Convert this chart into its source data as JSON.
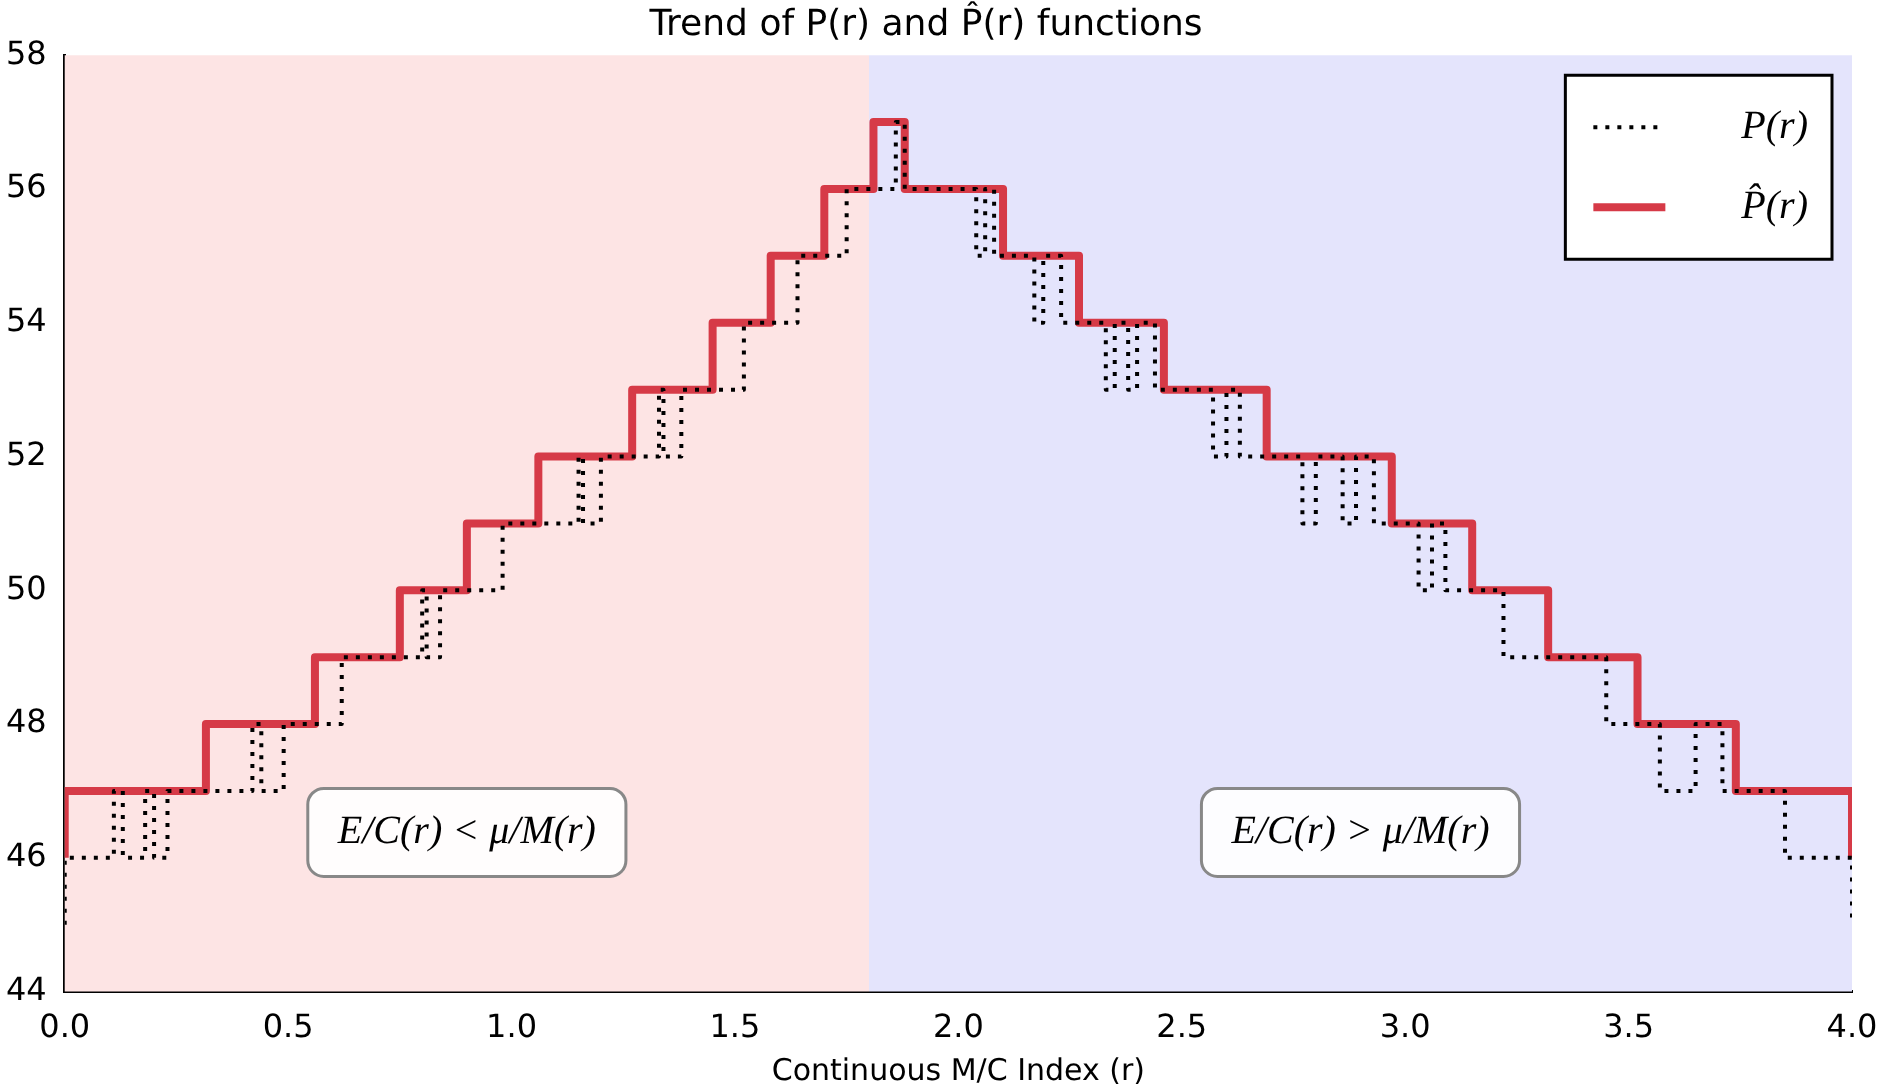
{
  "chart_data": {
    "type": "step",
    "title": "Trend of P(r) and P̂(r) functions",
    "xlabel": "Continuous M/C Index (r)",
    "xlim": [
      0,
      4
    ],
    "xticks": [
      {
        "value": 0,
        "label": "0.0"
      },
      {
        "value": 0.5,
        "label": "0.5"
      },
      {
        "value": 1,
        "label": "1.0"
      },
      {
        "value": 1.5,
        "label": "1.5"
      },
      {
        "value": 2,
        "label": "2.0"
      },
      {
        "value": 2.5,
        "label": "2.5"
      },
      {
        "value": 3,
        "label": "3.0"
      },
      {
        "value": 3.5,
        "label": "3.5"
      },
      {
        "value": 4,
        "label": "4.0"
      }
    ],
    "ylim": [
      44,
      58
    ],
    "yticks": [
      44,
      46,
      48,
      50,
      52,
      54,
      56,
      58
    ],
    "grid": false,
    "legend": "top right",
    "bands": [
      {
        "axis": "x",
        "from": 0,
        "to": 1.8,
        "label": "E/C(r) < μ/M(r)",
        "color": "#fde4e4"
      },
      {
        "axis": "x",
        "from": 1.8,
        "to": 4,
        "label": "E/C(r) > μ/M(r)",
        "color": "#e4e4fc"
      }
    ],
    "series": [
      {
        "name": "P(r)",
        "color": "#000000",
        "line_style": "dotted",
        "x": [
          0,
          0,
          0.11,
          0.13,
          0.18,
          0.2,
          0.23,
          0.42,
          0.44,
          0.49,
          0.62,
          0.8,
          0.81,
          0.84,
          0.98,
          1.15,
          1.16,
          1.2,
          1.33,
          1.34,
          1.38,
          1.52,
          1.64,
          1.75,
          1.86,
          1.88,
          2.04,
          2.06,
          2.08,
          2.17,
          2.19,
          2.23,
          2.33,
          2.35,
          2.38,
          2.4,
          2.44,
          2.57,
          2.6,
          2.63,
          2.77,
          2.8,
          2.86,
          2.89,
          2.93,
          3.03,
          3.06,
          3.09,
          3.22,
          3.45,
          3.57,
          3.65,
          3.71,
          3.85,
          4
        ],
        "values": [
          45,
          46,
          47,
          46,
          47,
          46,
          47,
          48,
          47,
          48,
          49,
          50,
          49,
          50,
          51,
          52,
          51,
          52,
          53,
          52,
          53,
          54,
          55,
          56,
          57,
          56,
          55,
          56,
          55,
          54,
          55,
          54,
          53,
          54,
          53,
          54,
          53,
          52,
          53,
          52,
          51,
          52,
          51,
          52,
          51,
          50,
          51,
          50,
          49,
          48,
          47,
          48,
          47,
          46,
          45
        ]
      },
      {
        "name": "P̂(r)",
        "color": "#d63a47",
        "line_style": "solid",
        "x": [
          0,
          0,
          0.316,
          0.56,
          0.75,
          0.9,
          1.06,
          1.27,
          1.45,
          1.58,
          1.7,
          1.81,
          1.88,
          2.1,
          2.27,
          2.46,
          2.69,
          2.97,
          3.15,
          3.32,
          3.52,
          3.74,
          4
        ],
        "values": [
          46,
          47,
          48,
          49,
          50,
          51,
          52,
          53,
          54,
          55,
          56,
          57,
          56,
          55,
          54,
          53,
          52,
          51,
          50,
          49,
          48,
          47,
          46
        ]
      }
    ]
  }
}
